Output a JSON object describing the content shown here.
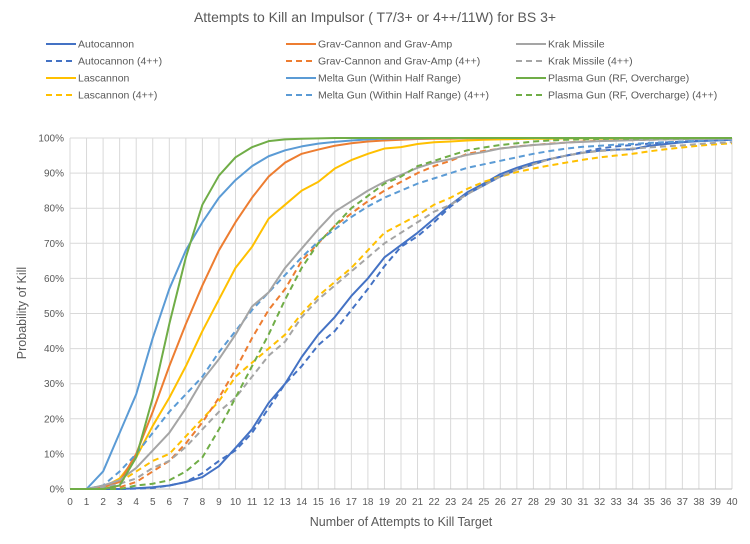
{
  "chart_data": {
    "type": "line",
    "title": "Attempts to Kill an Impulsor ( T7/3+ or 4++/11W) for BS 3+",
    "xlabel": "Number of Attempts to Kill Target",
    "ylabel": "Probability of Kill",
    "xlim": [
      0,
      40
    ],
    "ylim": [
      0,
      100
    ],
    "x_ticks": [
      "0",
      "1",
      "2",
      "3",
      "4",
      "5",
      "6",
      "7",
      "8",
      "9",
      "10",
      "11",
      "12",
      "13",
      "14",
      "15",
      "16",
      "17",
      "18",
      "19",
      "20",
      "21",
      "22",
      "23",
      "24",
      "25",
      "26",
      "27",
      "28",
      "29",
      "30",
      "31",
      "32",
      "33",
      "34",
      "35",
      "36",
      "37",
      "38",
      "39",
      "40"
    ],
    "y_ticks": [
      "0%",
      "10%",
      "20%",
      "30%",
      "40%",
      "50%",
      "60%",
      "70%",
      "80%",
      "90%",
      "100%"
    ],
    "grid": "both",
    "legend_position": "top",
    "x": [
      0,
      1,
      2,
      3,
      4,
      5,
      6,
      7,
      8,
      9,
      10,
      11,
      12,
      13,
      14,
      15,
      16,
      17,
      18,
      19,
      20,
      21,
      22,
      23,
      24,
      25,
      26,
      27,
      28,
      29,
      30,
      31,
      32,
      33,
      34,
      35,
      36,
      37,
      38,
      39,
      40
    ],
    "series": [
      {
        "name": "Autocannon",
        "color": "#4472C4",
        "dashed": false,
        "values": [
          0,
          0,
          0,
          0,
          0.2,
          0.5,
          1,
          2,
          3.4,
          6.5,
          11.7,
          17,
          24.5,
          30,
          37.6,
          44,
          49,
          55,
          60,
          66,
          69.5,
          73,
          77,
          81,
          84.5,
          87,
          89.7,
          91.5,
          93,
          94,
          95,
          95.8,
          96.4,
          96.7,
          96.8,
          97.8,
          98.3,
          98.8,
          99.1,
          99.3,
          99.5
        ]
      },
      {
        "name": "Autocannon (4++)",
        "color": "#4472C4",
        "dashed": true,
        "values": [
          0,
          0,
          0,
          0,
          0.1,
          0.3,
          1,
          2,
          4.5,
          8,
          11,
          16,
          23,
          30,
          35,
          41,
          45,
          51,
          57,
          63.5,
          69,
          72,
          76,
          80.5,
          84,
          86.5,
          89,
          91,
          92.5,
          94,
          95,
          96,
          97,
          97.6,
          98,
          98.4,
          98.7,
          99,
          99.2,
          99.4,
          99.5
        ]
      },
      {
        "name": "Lascannon",
        "color": "#FFC000",
        "dashed": false,
        "values": [
          0,
          0,
          0.5,
          3,
          9,
          18,
          26,
          35,
          45,
          54,
          63,
          69,
          77,
          81,
          85,
          87.5,
          91.3,
          93.7,
          95.5,
          97,
          97.4,
          98.3,
          98.8,
          99,
          99.3,
          99.5,
          99.6,
          99.7,
          99.8,
          99.8,
          99.9,
          99.9,
          99.9,
          99.9,
          100,
          100,
          100,
          100,
          100,
          100,
          100
        ]
      },
      {
        "name": "Lascannon (4++)",
        "color": "#FFC000",
        "dashed": true,
        "values": [
          0,
          0,
          0.5,
          2,
          5,
          8,
          10,
          15,
          20,
          25,
          32,
          36,
          40,
          44,
          50,
          55,
          59,
          63,
          68,
          73,
          75.5,
          78,
          81,
          83,
          85.5,
          87.5,
          89,
          90.3,
          91.3,
          92.2,
          93,
          93.8,
          94.5,
          95,
          95.5,
          96.2,
          96.8,
          97.3,
          97.8,
          98.2,
          98.5
        ]
      },
      {
        "name": "Grav-Cannon and Grav-Amp",
        "color": "#ED7D31",
        "dashed": false,
        "values": [
          0,
          0,
          0.5,
          2,
          10,
          22,
          35,
          47,
          58,
          68,
          76,
          83,
          89,
          93,
          95.5,
          96.7,
          97.8,
          98.5,
          99,
          99.3,
          99.5,
          99.7,
          99.8,
          99.8,
          99.9,
          99.9,
          100,
          100,
          100,
          100,
          100,
          100,
          100,
          100,
          100,
          100,
          100,
          100,
          100,
          100,
          100
        ]
      },
      {
        "name": "Grav-Cannon and Grav-Amp (4++)",
        "color": "#ED7D31",
        "dashed": true,
        "values": [
          0,
          0,
          0,
          0.5,
          2,
          5,
          8,
          13,
          19,
          26,
          34,
          43,
          51,
          57,
          65,
          70,
          75,
          78.5,
          82,
          85,
          87.5,
          90,
          92,
          93.5,
          95.5,
          96.3,
          97,
          97.6,
          98,
          98.4,
          98.7,
          99,
          99.2,
          99.3,
          99.4,
          99.5,
          99.6,
          99.7,
          99.8,
          99.8,
          99.9
        ]
      },
      {
        "name": "Melta Gun (Within Half Range)",
        "color": "#5B9BD5",
        "dashed": false,
        "values": [
          0,
          0,
          5,
          16,
          27,
          43,
          57,
          68,
          76,
          83,
          88,
          92,
          94.8,
          96.5,
          97.6,
          98.4,
          98.9,
          99.3,
          99.6,
          99.8,
          99.9,
          99.9,
          100,
          100,
          100,
          100,
          100,
          100,
          100,
          100,
          100,
          100,
          100,
          100,
          100,
          100,
          100,
          100,
          100,
          100,
          100
        ]
      },
      {
        "name": "Melta Gun (Within Half Range) (4++)",
        "color": "#5B9BD5",
        "dashed": true,
        "values": [
          0,
          0,
          1,
          5,
          10,
          16,
          22,
          27,
          32,
          39,
          45,
          51,
          56,
          61,
          66,
          70.5,
          74,
          77.5,
          80.5,
          83,
          85,
          87,
          88.5,
          90,
          91.5,
          92.5,
          93.5,
          94.5,
          95.5,
          96.3,
          97,
          97.5,
          97.8,
          98.1,
          98.3,
          98.6,
          98.8,
          99,
          99.2,
          99.4,
          99.6
        ]
      },
      {
        "name": "Krak Missile",
        "color": "#A5A5A5",
        "dashed": false,
        "values": [
          0,
          0,
          1,
          2.5,
          6,
          11,
          16,
          23,
          31,
          37,
          44,
          52,
          56,
          63,
          68.5,
          74,
          79,
          82,
          85,
          87.5,
          89.5,
          91.5,
          93,
          94,
          95.2,
          96,
          97,
          97.5,
          98,
          98.3,
          98.7,
          98.9,
          99.1,
          99.2,
          99.4,
          99.5,
          99.6,
          99.7,
          99.7,
          99.8,
          99.8
        ]
      },
      {
        "name": "Krak Missile (4++)",
        "color": "#A5A5A5",
        "dashed": true,
        "values": [
          0,
          0,
          0.5,
          1.5,
          3,
          6,
          8,
          12,
          17,
          22,
          26,
          32,
          38,
          42,
          49,
          54,
          58,
          62,
          66,
          70,
          73,
          76,
          79,
          81,
          84,
          86.5,
          89,
          91,
          92.5,
          94,
          95,
          95.8,
          96.3,
          96.6,
          97,
          97.3,
          97.6,
          97.9,
          98.3,
          98.6,
          98.8
        ]
      },
      {
        "name": "Plasma Gun (RF, Overcharge)",
        "color": "#70AD47",
        "dashed": false,
        "values": [
          0,
          0,
          0,
          1,
          9,
          26,
          47,
          66,
          81,
          89.3,
          94.5,
          97.4,
          99.1,
          99.6,
          99.8,
          99.9,
          100,
          100,
          100,
          100,
          100,
          100,
          100,
          100,
          100,
          100,
          100,
          100,
          100,
          100,
          100,
          100,
          100,
          100,
          100,
          100,
          100,
          100,
          100,
          100,
          100
        ]
      },
      {
        "name": "Plasma Gun (RF, Overcharge) (4++)",
        "color": "#70AD47",
        "dashed": true,
        "values": [
          0,
          0,
          0,
          0,
          1,
          1.5,
          2.5,
          5,
          9,
          17,
          26,
          35,
          44,
          54,
          63,
          70,
          75,
          80,
          83.5,
          87,
          89,
          92,
          93.5,
          95,
          96.5,
          97.3,
          98,
          98.5,
          99,
          99.3,
          99.5,
          99.6,
          99.7,
          99.8,
          99.8,
          99.9,
          99.9,
          99.9,
          100,
          100,
          100
        ]
      }
    ]
  }
}
